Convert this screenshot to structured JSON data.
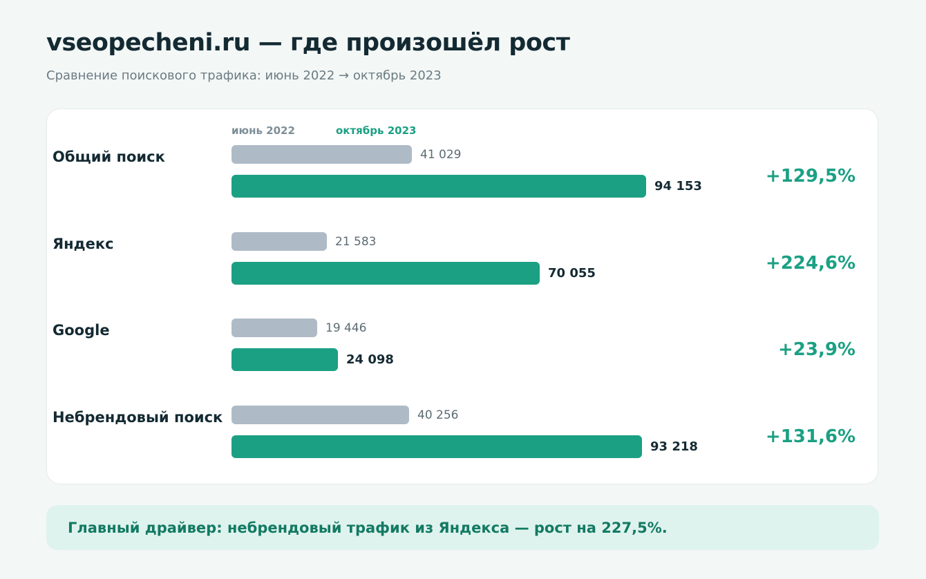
{
  "header": {
    "title": "vseopecheni.ru — где произошёл рост",
    "subtitle": "Сравнение поискового трафика: июнь 2022 → октябрь 2023"
  },
  "colors": {
    "old": "#aebbc6",
    "new": "#1ba083",
    "growth": "#1ba083"
  },
  "chart_data": {
    "type": "bar",
    "orientation": "horizontal",
    "categories": [
      "Общий поиск",
      "Яндекс",
      "Google",
      "Небрендовый поиск"
    ],
    "series": [
      {
        "name": "июнь 2022",
        "values": [
          41029,
          21583,
          19446,
          40256
        ]
      },
      {
        "name": "октябрь 2023",
        "values": [
          94153,
          70055,
          24098,
          93218
        ]
      }
    ],
    "value_labels": {
      "old": [
        "41 029",
        "21 583",
        "19 446",
        "40 256"
      ],
      "new": [
        "94 153",
        "70 055",
        "24 098",
        "93 218"
      ]
    },
    "growth_labels": [
      "+129,5%",
      "+224,6%",
      "+23,9%",
      "+131,6%"
    ],
    "legend": [
      "июнь 2022",
      "октябрь 2023"
    ],
    "legend_position": "top",
    "grid": false
  },
  "footer": {
    "note": "Главный драйвер: небрендовый трафик из Яндекса — рост на 227,5%."
  }
}
